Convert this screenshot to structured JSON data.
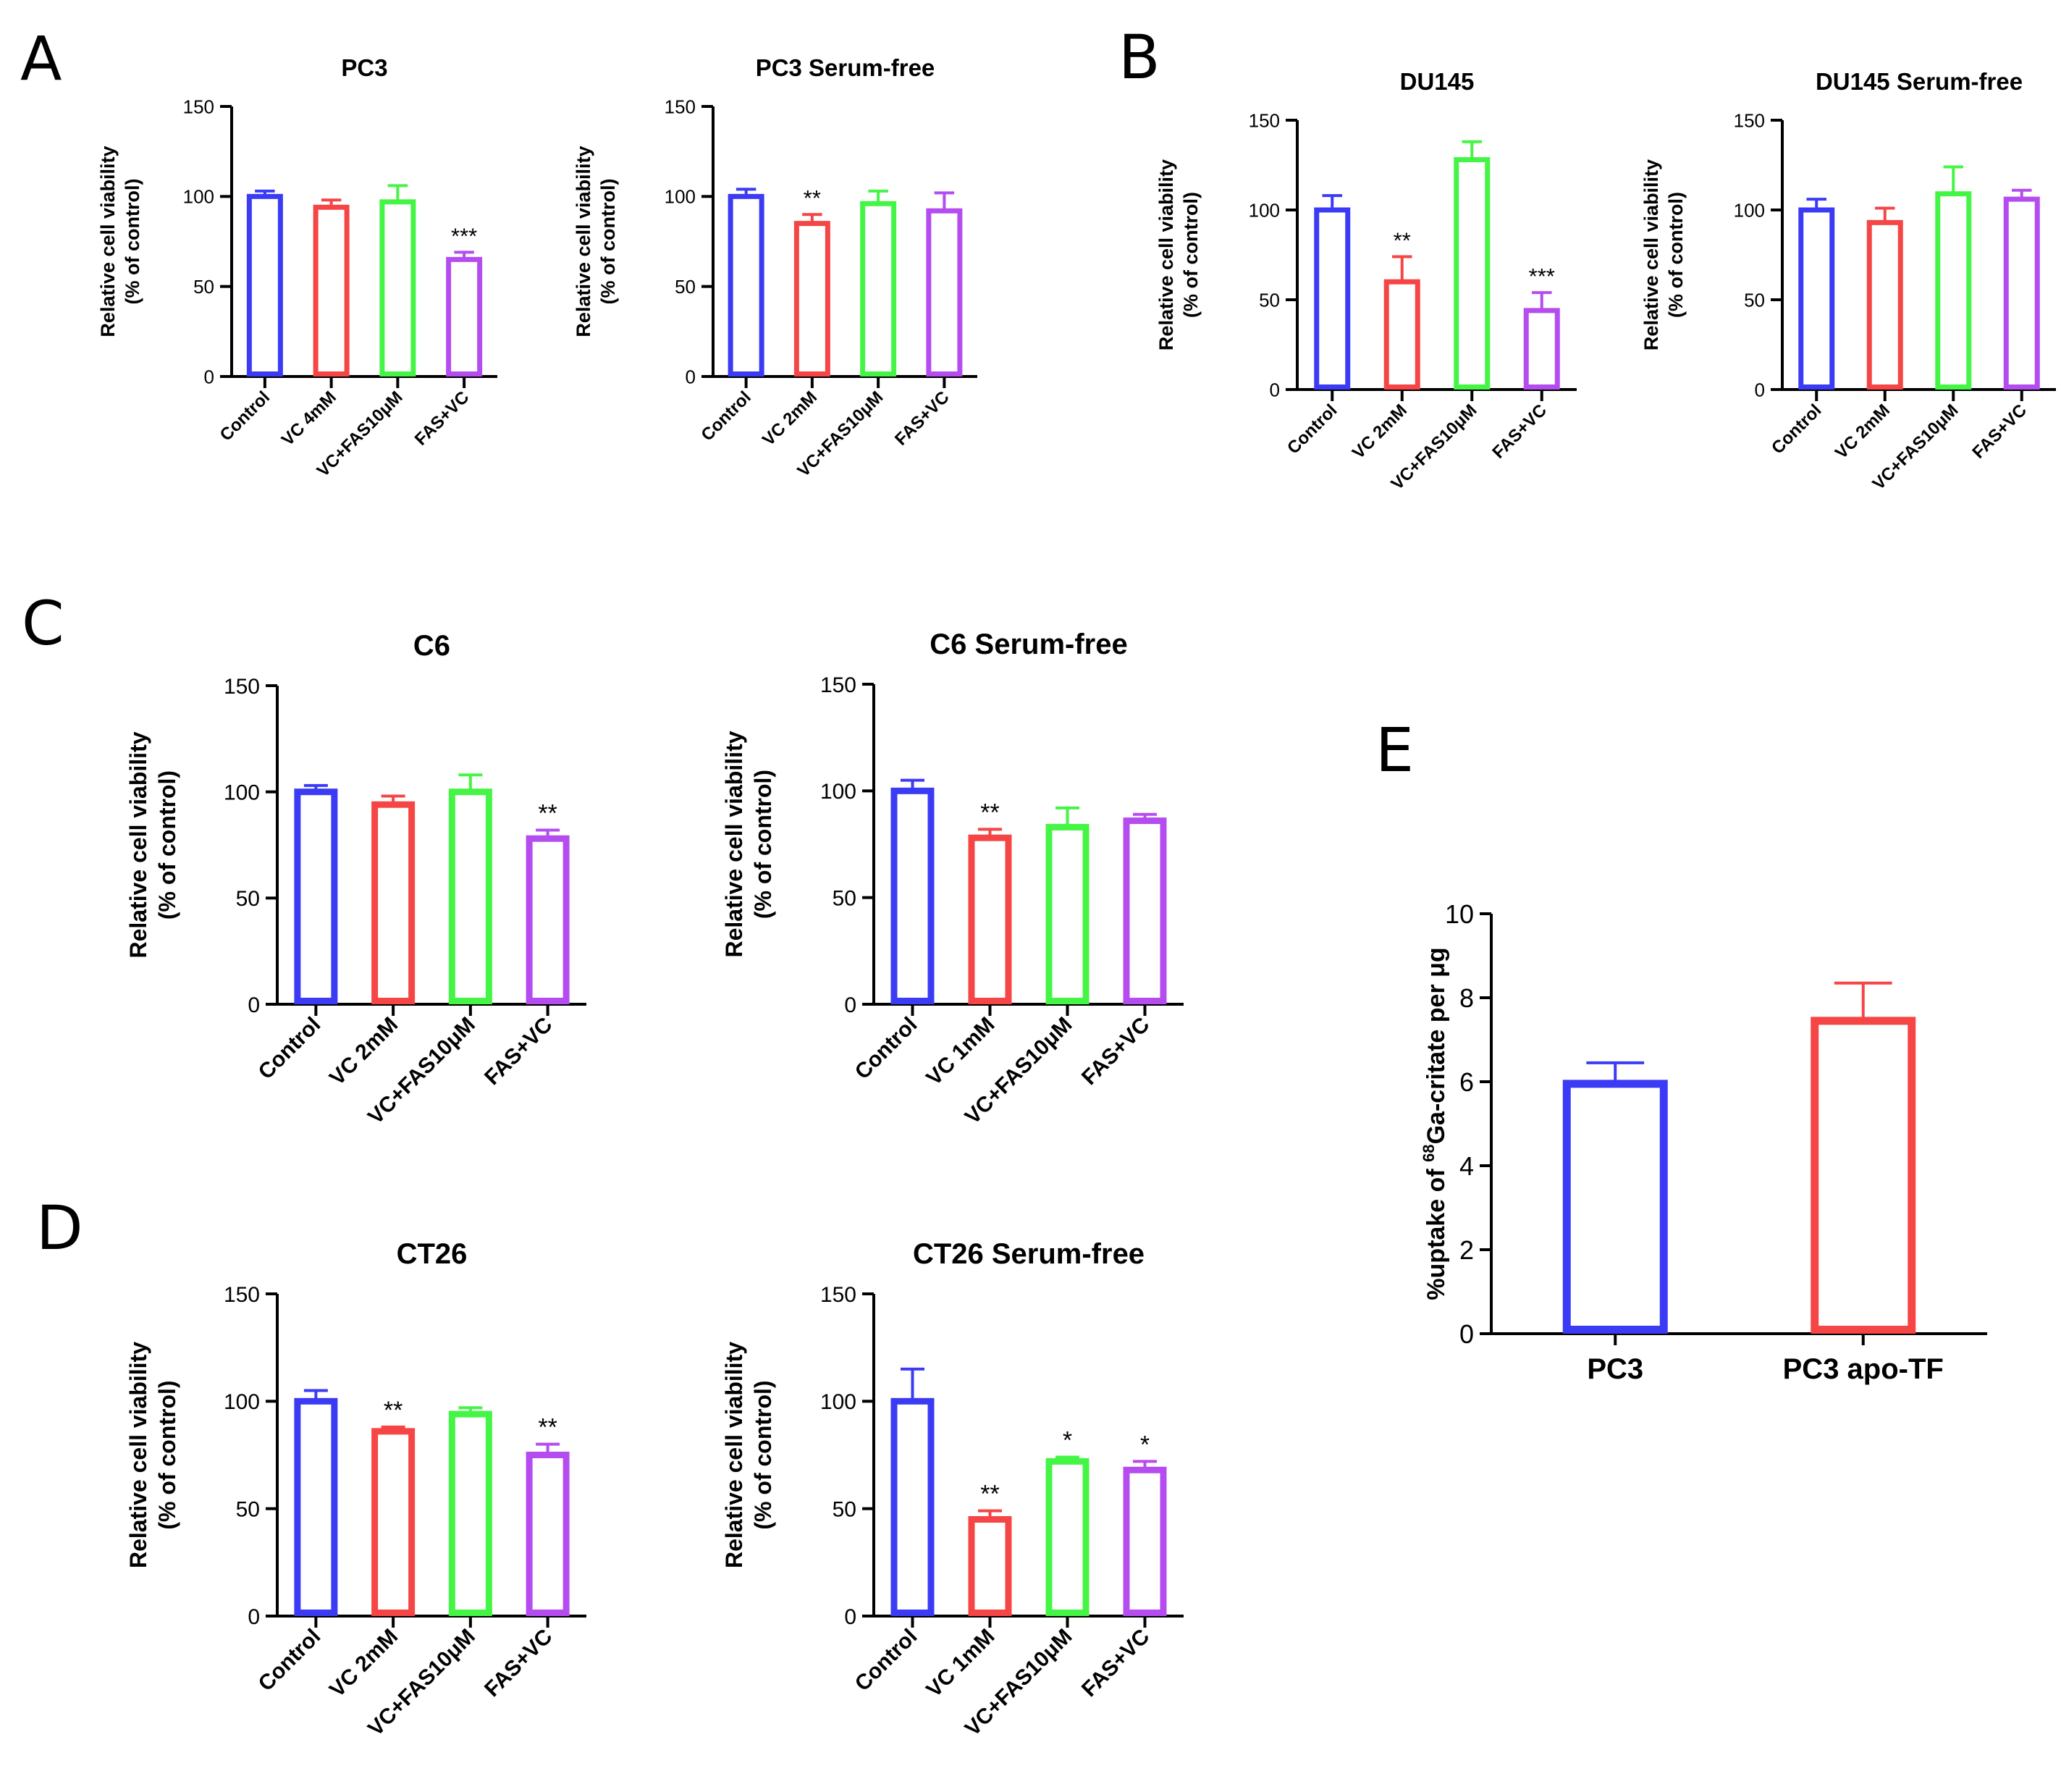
{
  "panel_labels": [
    "A",
    "B",
    "C",
    "D",
    "E"
  ],
  "colors": {
    "blue": "#3b3bf5",
    "red": "#f54545",
    "green": "#45f545",
    "purple": "#b44cf0",
    "axis": "#000000"
  },
  "chart_data": [
    {
      "type": "bar",
      "panel": "A",
      "title": "PC3",
      "ylabel": [
        "Relative cell viability",
        "(% of control)"
      ],
      "ylim": [
        0,
        150
      ],
      "yticks": [
        0,
        50,
        100,
        150
      ],
      "categories": [
        "Control",
        "VC 4mM",
        "VC+FAS10μM",
        "FAS+VC"
      ],
      "values": [
        100,
        94,
        97,
        65
      ],
      "errors": [
        3,
        4,
        9,
        4
      ],
      "significance": [
        "",
        "",
        "",
        "***"
      ],
      "colors": [
        "#3b3bf5",
        "#f54545",
        "#45f545",
        "#b44cf0"
      ]
    },
    {
      "type": "bar",
      "panel": "A",
      "title": "PC3 Serum-free",
      "ylabel": [
        "Relative cell viability",
        "(% of control)"
      ],
      "ylim": [
        0,
        150
      ],
      "yticks": [
        0,
        50,
        100,
        150
      ],
      "categories": [
        "Control",
        "VC 2mM",
        "VC+FAS10μM",
        "FAS+VC"
      ],
      "values": [
        100,
        85,
        96,
        92
      ],
      "errors": [
        4,
        5,
        7,
        10
      ],
      "significance": [
        "",
        "**",
        "",
        ""
      ],
      "colors": [
        "#3b3bf5",
        "#f54545",
        "#45f545",
        "#b44cf0"
      ]
    },
    {
      "type": "bar",
      "panel": "B",
      "title": "DU145",
      "ylabel": [
        "Relative cell viability",
        "(% of control)"
      ],
      "ylim": [
        0,
        150
      ],
      "yticks": [
        0,
        50,
        100,
        150
      ],
      "categories": [
        "Control",
        "VC 2mM",
        "VC+FAS10μM",
        "FAS+VC"
      ],
      "values": [
        100,
        60,
        128,
        44
      ],
      "errors": [
        8,
        14,
        10,
        10
      ],
      "significance": [
        "",
        "**",
        "",
        "***"
      ],
      "colors": [
        "#3b3bf5",
        "#f54545",
        "#45f545",
        "#b44cf0"
      ]
    },
    {
      "type": "bar",
      "panel": "B",
      "title": "DU145 Serum-free",
      "ylabel": [
        "Relative cell viability",
        "(% of control)"
      ],
      "ylim": [
        0,
        150
      ],
      "yticks": [
        0,
        50,
        100,
        150
      ],
      "categories": [
        "Control",
        "VC 2mM",
        "VC+FAS10μM",
        "FAS+VC"
      ],
      "values": [
        100,
        93,
        109,
        106
      ],
      "errors": [
        6,
        8,
        15,
        5
      ],
      "significance": [
        "",
        "",
        "",
        ""
      ],
      "colors": [
        "#3b3bf5",
        "#f54545",
        "#45f545",
        "#b44cf0"
      ]
    },
    {
      "type": "bar",
      "panel": "C",
      "title": "C6",
      "ylabel": [
        "Relative cell viability",
        "(% of control)"
      ],
      "ylim": [
        0,
        150
      ],
      "yticks": [
        0,
        50,
        100,
        150
      ],
      "categories": [
        "Control",
        "VC 2mM",
        "VC+FAS10μM",
        "FAS+VC"
      ],
      "values": [
        100,
        94,
        100,
        78
      ],
      "errors": [
        3,
        4,
        8,
        4
      ],
      "significance": [
        "",
        "",
        "",
        "**"
      ],
      "colors": [
        "#3b3bf5",
        "#f54545",
        "#45f545",
        "#b44cf0"
      ]
    },
    {
      "type": "bar",
      "panel": "C",
      "title": "C6 Serum-free",
      "ylabel": [
        "Relative cell viability",
        "(% of control)"
      ],
      "ylim": [
        0,
        150
      ],
      "yticks": [
        0,
        50,
        100,
        150
      ],
      "categories": [
        "Control",
        "VC 1mM",
        "VC+FAS10μM",
        "FAS+VC"
      ],
      "values": [
        100,
        78,
        83,
        86
      ],
      "errors": [
        5,
        4,
        9,
        3
      ],
      "significance": [
        "",
        "**",
        "",
        ""
      ],
      "colors": [
        "#3b3bf5",
        "#f54545",
        "#45f545",
        "#b44cf0"
      ]
    },
    {
      "type": "bar",
      "panel": "D",
      "title": "CT26",
      "ylabel": [
        "Relative cell viability",
        "(% of control)"
      ],
      "ylim": [
        0,
        150
      ],
      "yticks": [
        0,
        50,
        100,
        150
      ],
      "categories": [
        "Control",
        "VC 2mM",
        "VC+FAS10μM",
        "FAS+VC"
      ],
      "values": [
        100,
        86,
        94,
        75
      ],
      "errors": [
        5,
        2,
        3,
        5
      ],
      "significance": [
        "",
        "**",
        "",
        "**"
      ],
      "colors": [
        "#3b3bf5",
        "#f54545",
        "#45f545",
        "#b44cf0"
      ]
    },
    {
      "type": "bar",
      "panel": "D",
      "title": "CT26 Serum-free",
      "ylabel": [
        "Relative cell viability",
        "(% of control)"
      ],
      "ylim": [
        0,
        150
      ],
      "yticks": [
        0,
        50,
        100,
        150
      ],
      "categories": [
        "Control",
        "VC 1mM",
        "VC+FAS10μM",
        "FAS+VC"
      ],
      "values": [
        100,
        45,
        72,
        68
      ],
      "errors": [
        15,
        4,
        2,
        4
      ],
      "significance": [
        "",
        "**",
        "*",
        "*"
      ],
      "colors": [
        "#3b3bf5",
        "#f54545",
        "#45f545",
        "#b44cf0"
      ]
    },
    {
      "type": "bar",
      "panel": "E",
      "title": "",
      "ylabel": [
        "%uptake of ",
        "68",
        "Ga-critate per μg"
      ],
      "ylim": [
        0,
        10
      ],
      "yticks": [
        0,
        2,
        4,
        6,
        8,
        10
      ],
      "categories": [
        "PC3",
        "PC3 apo-TF"
      ],
      "values": [
        5.95,
        7.45
      ],
      "errors": [
        0.5,
        0.9
      ],
      "significance": [
        "",
        ""
      ],
      "colors": [
        "#3b3bf5",
        "#f54545"
      ]
    }
  ]
}
